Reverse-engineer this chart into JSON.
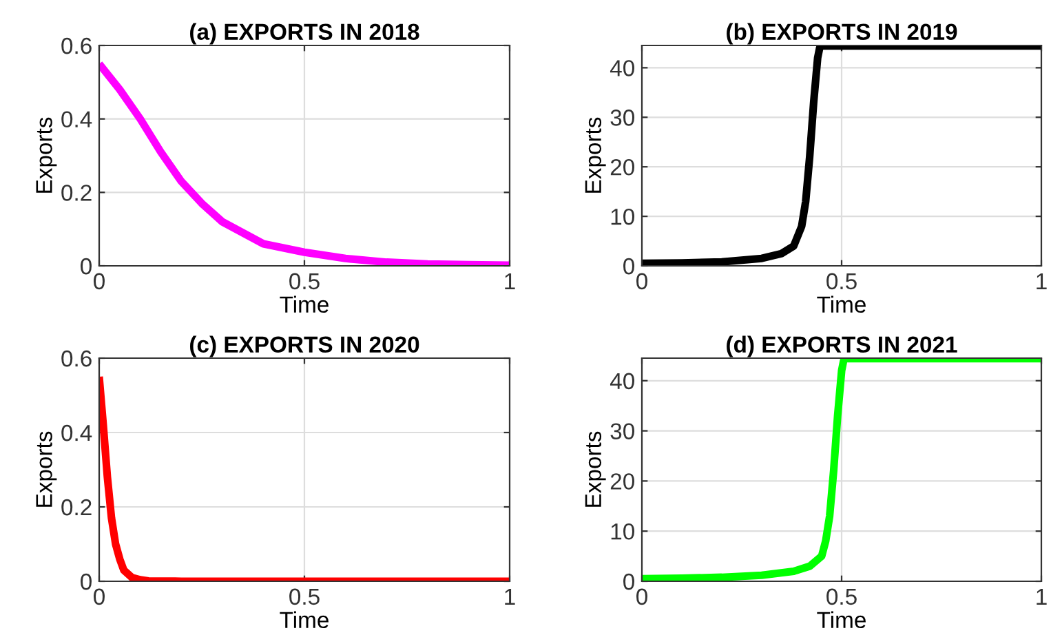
{
  "chart_data": [
    {
      "type": "line",
      "title": "(a) EXPORTS IN 2018",
      "xlabel": "Time",
      "ylabel": "Exports",
      "x": [
        0,
        0.05,
        0.1,
        0.15,
        0.2,
        0.25,
        0.3,
        0.35,
        0.4,
        0.5,
        0.6,
        0.7,
        0.8,
        0.9,
        1
      ],
      "series": [
        {
          "color": "#ff00ff",
          "values": [
            0.55,
            0.48,
            0.4,
            0.31,
            0.23,
            0.17,
            0.12,
            0.09,
            0.06,
            0.037,
            0.02,
            0.01,
            0.005,
            0.003,
            0.002
          ]
        }
      ],
      "xlim": [
        0,
        1
      ],
      "xticks": [
        0,
        0.5,
        1
      ],
      "ylim": [
        0,
        0.6
      ],
      "yticks": [
        0,
        0.2,
        0.4,
        0.6
      ],
      "grid": true
    },
    {
      "type": "line",
      "title": "(b) EXPORTS IN 2019",
      "xlabel": "Time",
      "ylabel": "Exports",
      "x": [
        0,
        0.1,
        0.2,
        0.3,
        0.35,
        0.38,
        0.4,
        0.41,
        0.42,
        0.43,
        0.44,
        0.445,
        0.45,
        0.6,
        0.8,
        1
      ],
      "series": [
        {
          "color": "#000000",
          "values": [
            0.5,
            0.6,
            0.8,
            1.5,
            2.5,
            4,
            8,
            13,
            22,
            33,
            42,
            44,
            44.4,
            44.4,
            44.4,
            44.4
          ]
        }
      ],
      "xlim": [
        0,
        1
      ],
      "xticks": [
        0,
        0.5,
        1
      ],
      "ylim": [
        0,
        44.5
      ],
      "yticks": [
        0,
        10,
        20,
        30,
        40
      ],
      "grid": true
    },
    {
      "type": "line",
      "title": "(c) EXPORTS IN 2020",
      "xlabel": "Time",
      "ylabel": "Exports",
      "x": [
        0,
        0.01,
        0.02,
        0.03,
        0.04,
        0.05,
        0.06,
        0.08,
        0.1,
        0.12,
        0.2,
        0.5,
        1
      ],
      "series": [
        {
          "color": "#ff0000",
          "values": [
            0.55,
            0.42,
            0.28,
            0.17,
            0.1,
            0.06,
            0.03,
            0.01,
            0.004,
            0.001,
            0,
            0,
            0
          ]
        }
      ],
      "xlim": [
        0,
        1
      ],
      "xticks": [
        0,
        0.5,
        1
      ],
      "ylim": [
        0,
        0.6
      ],
      "yticks": [
        0,
        0.2,
        0.4,
        0.6
      ],
      "grid": true
    },
    {
      "type": "line",
      "title": "(d) EXPORTS IN 2021",
      "xlabel": "Time",
      "ylabel": "Exports",
      "x": [
        0,
        0.1,
        0.2,
        0.3,
        0.38,
        0.42,
        0.45,
        0.46,
        0.47,
        0.48,
        0.49,
        0.5,
        0.505,
        0.51,
        0.6,
        0.8,
        1
      ],
      "series": [
        {
          "color": "#00ff00",
          "values": [
            0.5,
            0.6,
            0.8,
            1.2,
            2,
            3,
            5,
            8,
            13,
            22,
            33,
            42,
            44,
            44.4,
            44.4,
            44.4,
            44.4
          ]
        }
      ],
      "xlim": [
        0,
        1
      ],
      "xticks": [
        0,
        0.5,
        1
      ],
      "ylim": [
        0,
        44.5
      ],
      "yticks": [
        0,
        10,
        20,
        30,
        40
      ],
      "grid": true
    }
  ]
}
